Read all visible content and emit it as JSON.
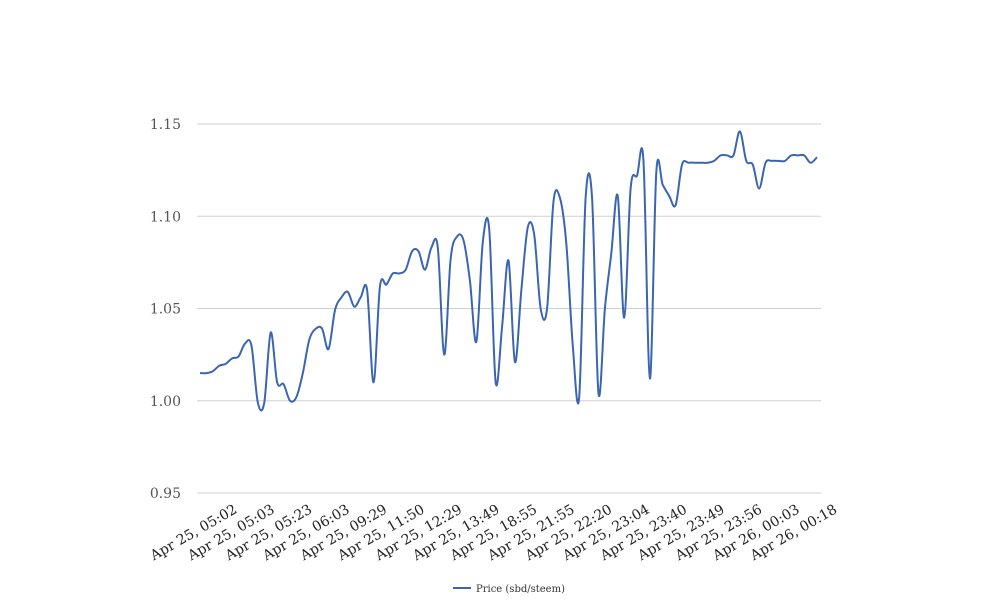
{
  "chart_data": {
    "type": "line",
    "title": "",
    "xlabel": "",
    "ylabel": "",
    "ylim": [
      0.95,
      1.15
    ],
    "yticks": [
      "0.95",
      "1.00",
      "1.05",
      "1.10",
      "1.15"
    ],
    "grid": true,
    "legend_position": "bottom-center",
    "line_color": "#3a66b1",
    "grid_color": "#d0d0d0",
    "x_tick_labels": [
      "Apr 25, 05:02",
      "Apr 25, 05:03",
      "Apr 25, 05:23",
      "Apr 25, 06:03",
      "Apr 25, 09:29",
      "Apr 25, 11:50",
      "Apr 25, 12:29",
      "Apr 25, 13:49",
      "Apr 25, 18:55",
      "Apr 25, 21:55",
      "Apr 25, 22:20",
      "Apr 25, 23:04",
      "Apr 25, 23:40",
      "Apr 25, 23:49",
      "Apr 25, 23:56",
      "Apr 26, 00:03",
      "Apr 26, 00:18"
    ],
    "series": [
      {
        "name": "Price (sbd/steem)",
        "values": [
          1.015,
          1.015,
          1.016,
          1.019,
          1.02,
          1.023,
          1.024,
          1.031,
          1.03,
          0.999,
          0.999,
          1.037,
          1.01,
          1.009,
          1.0,
          1.002,
          1.015,
          1.033,
          1.039,
          1.039,
          1.028,
          1.049,
          1.056,
          1.059,
          1.051,
          1.056,
          1.06,
          1.01,
          1.062,
          1.063,
          1.069,
          1.069,
          1.071,
          1.081,
          1.081,
          1.071,
          1.083,
          1.083,
          1.025,
          1.077,
          1.089,
          1.087,
          1.065,
          1.032,
          1.086,
          1.093,
          1.01,
          1.04,
          1.076,
          1.021,
          1.06,
          1.094,
          1.09,
          1.05,
          1.05,
          1.108,
          1.11,
          1.085,
          1.03,
          1.002,
          1.11,
          1.11,
          1.004,
          1.05,
          1.08,
          1.111,
          1.045,
          1.115,
          1.122,
          1.13,
          1.012,
          1.124,
          1.117,
          1.111,
          1.106,
          1.128,
          1.129,
          1.129,
          1.129,
          1.129,
          1.13,
          1.133,
          1.133,
          1.133,
          1.146,
          1.13,
          1.128,
          1.115,
          1.129,
          1.13,
          1.13,
          1.13,
          1.133,
          1.133,
          1.133,
          1.129,
          1.132
        ]
      }
    ]
  }
}
